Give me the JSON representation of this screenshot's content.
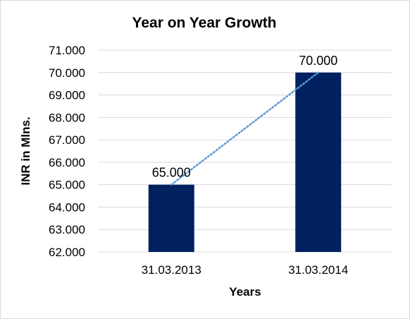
{
  "chart_data": {
    "type": "bar",
    "title": "Year on Year Growth",
    "xlabel": "Years",
    "ylabel": "INR in Mlns.",
    "categories": [
      "31.03.2013",
      "31.03.2014"
    ],
    "values": [
      65.0,
      70.0
    ],
    "data_labels": [
      "65.000",
      "70.000"
    ],
    "ylim": [
      62,
      71
    ],
    "yticks": [
      "62.000",
      "63.000",
      "64.000",
      "65.000",
      "66.000",
      "67.000",
      "68.000",
      "69.000",
      "70.000",
      "71.000"
    ],
    "grid": true,
    "legend": "none",
    "trendline": "linear dotted",
    "colors": {
      "bar": "#002060",
      "trendline": "#5B9BD5",
      "grid": "#d9d9d9"
    }
  }
}
